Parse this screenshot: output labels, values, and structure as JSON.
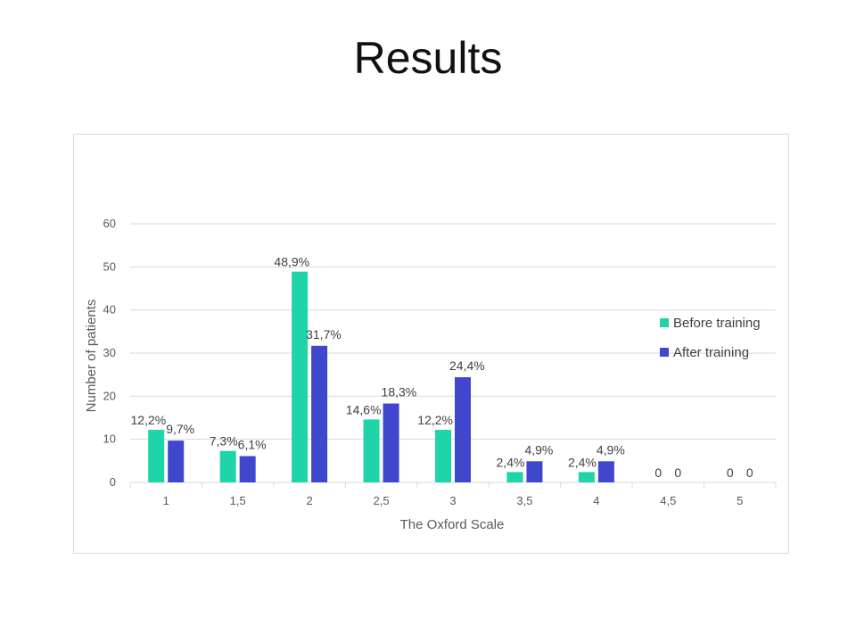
{
  "slide": {
    "title": "Results"
  },
  "colors": {
    "before": "#1ed4a8",
    "after": "#3f48cc",
    "grid": "#d9d9d9",
    "axis_text": "#595959"
  },
  "chart_data": {
    "type": "bar",
    "title": "",
    "xlabel": "The Oxford Scale",
    "ylabel": "Number of patients",
    "ylim": [
      0,
      60
    ],
    "yticks": [
      0,
      10,
      20,
      30,
      40,
      50,
      60
    ],
    "grid": true,
    "legend_position": "right",
    "categories": [
      "1",
      "1,5",
      "2",
      "2,5",
      "3",
      "3,5",
      "4",
      "4,5",
      "5"
    ],
    "series": [
      {
        "name": "Before training",
        "values": [
          12.2,
          7.3,
          48.9,
          14.6,
          12.2,
          2.4,
          2.4,
          0,
          0
        ],
        "labels": [
          "12,2%",
          "7,3%",
          "48,9%",
          "14,6%",
          "12,2%",
          "2,4%",
          "2,4%",
          "0",
          "0"
        ]
      },
      {
        "name": "After training",
        "values": [
          9.7,
          6.1,
          31.7,
          18.3,
          24.4,
          4.9,
          4.9,
          0,
          0
        ],
        "labels": [
          "9,7%",
          "6,1%",
          "31,7%",
          "18,3%",
          "24,4%",
          "4,9%",
          "4,9%",
          "0",
          "0"
        ]
      }
    ]
  }
}
